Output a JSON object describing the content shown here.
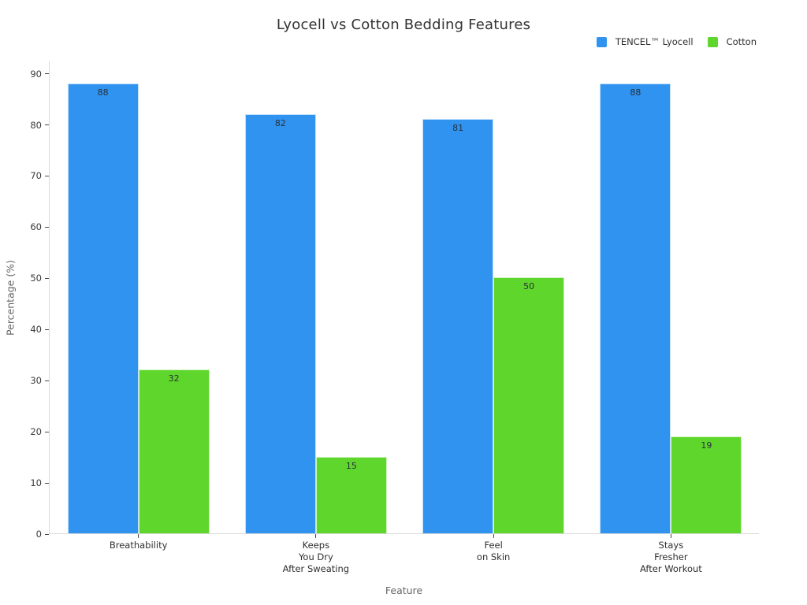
{
  "title": "Lyocell vs Cotton Bedding Features",
  "legend": {
    "items": [
      {
        "label": "TENCEL™ Lyocell",
        "color": "#3093F0"
      },
      {
        "label": "Cotton",
        "color": "#5FD62B"
      }
    ]
  },
  "chart_data": {
    "type": "bar",
    "title": "Lyocell vs Cotton Bedding Features",
    "categories": [
      "Breathability",
      "Keeps\nYou Dry\nAfter Sweating",
      "Feel\non Skin",
      "Stays\nFresher\nAfter Workout"
    ],
    "series": [
      {
        "name": "TENCEL™ Lyocell",
        "color": "#3093F0",
        "values": [
          88,
          82,
          81,
          88
        ]
      },
      {
        "name": "Cotton",
        "color": "#5FD62B",
        "values": [
          32,
          15,
          50,
          19
        ]
      }
    ],
    "xlabel": "Feature",
    "ylabel": "Percentage (%)",
    "ylim": [
      0,
      92.4
    ],
    "yticks": [
      0,
      10,
      20,
      30,
      40,
      50,
      60,
      70,
      80,
      90
    ],
    "grid": false,
    "legend_position": "top-right",
    "bar_value_labels": true
  }
}
